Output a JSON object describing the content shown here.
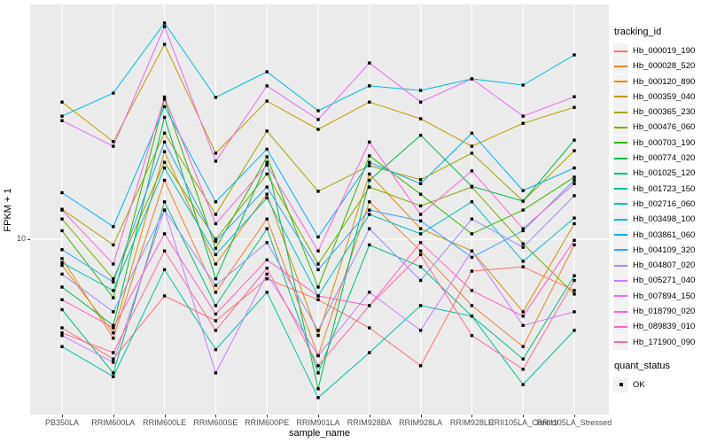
{
  "figure": {
    "y_axis_title": "FPKM + 1",
    "x_axis_title": "sample_name",
    "y_tick_labels": [
      "10"
    ]
  },
  "legend": {
    "tracking_title": "tracking_id",
    "quant_title": "quant_status",
    "quant_items": [
      {
        "label": "OK",
        "marker": "black-filled-square"
      }
    ]
  },
  "colors": {
    "panel_background": "#EBEBEB",
    "gridline": "#FFFFFF",
    "axis_text": "#4D4D4D",
    "tick_mark": "#333333",
    "point": "#000000",
    "legend_key_background": "#F2F2F2"
  },
  "chart_data": {
    "type": "line",
    "title": "",
    "xlabel": "sample_name",
    "ylabel": "FPKM + 1",
    "y_scale": "log10",
    "y_major_gridline_value": 10,
    "ylim": [
      2.1,
      79
    ],
    "grid": true,
    "legend_position": "right",
    "point_marker": "filled-black-square",
    "quant_status": "OK",
    "categories": [
      "PB350LA",
      "RRIM600LA",
      "RRIM600LE",
      "RRIM600SE",
      "RRIM600PE",
      "RRIM901LA",
      "RRIM928BA",
      "RRIM928LA",
      "RRIM928LE",
      "RRII105LA_Control",
      "RRII105LA_Stressed"
    ],
    "series": [
      {
        "name": "Hb_000019_190",
        "color": "#F8766D",
        "values": [
          4.5,
          3.4,
          6.0,
          4.8,
          7.0,
          5.8,
          4.5,
          3.2,
          7.5,
          7.8,
          6.3
        ]
      },
      {
        "name": "Hb_000028_520",
        "color": "#EA8331",
        "values": [
          8.4,
          4.1,
          17.0,
          6.2,
          12.0,
          3.5,
          14.0,
          9.0,
          5.5,
          3.8,
          9.5
        ]
      },
      {
        "name": "Hb_000120_890",
        "color": "#D89000",
        "values": [
          7.9,
          4.3,
          22.0,
          8.0,
          15.0,
          4.2,
          18.0,
          11.0,
          9.0,
          5.2,
          11.5
        ]
      },
      {
        "name": "Hb_000359_040",
        "color": "#C09B00",
        "values": [
          34.4,
          24.1,
          57.9,
          21.7,
          34.7,
          26.9,
          34.4,
          29.6,
          23.1,
          28.4,
          32.8
        ]
      },
      {
        "name": "Hb_000365_230",
        "color": "#A3A500",
        "values": [
          13.1,
          9.5,
          26.0,
          12.5,
          26.5,
          15.4,
          19.4,
          17.1,
          21.7,
          14.1,
          22.2
        ]
      },
      {
        "name": "Hb_000476_060",
        "color": "#7CAE00",
        "values": [
          12.0,
          7.0,
          20.0,
          10.0,
          18.0,
          8.0,
          16.0,
          13.5,
          16.0,
          9.6,
          6.1
        ]
      },
      {
        "name": "Hb_000703_190",
        "color": "#39B600",
        "values": [
          10.8,
          5.9,
          35.3,
          9.2,
          21.0,
          6.5,
          21.2,
          15.0,
          10.5,
          13.0,
          17.5
        ]
      },
      {
        "name": "Hb_000774_020",
        "color": "#00BB4E",
        "values": [
          6.5,
          4.6,
          30.0,
          7.0,
          20.0,
          2.6,
          17.0,
          25.5,
          16.1,
          14.1,
          24.4
        ]
      },
      {
        "name": "Hb_001025_120",
        "color": "#00BF7D",
        "values": [
          5.3,
          3.0,
          14.0,
          5.5,
          11.0,
          3.0,
          9.5,
          7.8,
          5.0,
          3.4,
          7.2
        ]
      },
      {
        "name": "Hb_001723_150",
        "color": "#00C1A3",
        "values": [
          3.8,
          2.9,
          7.6,
          3.7,
          6.2,
          2.4,
          3.6,
          5.5,
          5.0,
          2.7,
          4.4
        ]
      },
      {
        "name": "Hb_002716_060",
        "color": "#00BFC4",
        "values": [
          8.1,
          6.3,
          19.0,
          8.7,
          14.5,
          6.0,
          12.5,
          10.5,
          14.0,
          8.2,
          12.1
        ]
      },
      {
        "name": "Hb_003498_100",
        "color": "#00BAE0",
        "values": [
          30.3,
          37.3,
          70.1,
          35.9,
          45.2,
          31.8,
          39.8,
          38.2,
          42.4,
          40.1,
          52.6
        ]
      },
      {
        "name": "Hb_003861_060",
        "color": "#00B0F6",
        "values": [
          15.2,
          11.2,
          33.0,
          14.0,
          22.5,
          10.2,
          20.0,
          16.5,
          26.0,
          15.5,
          19.0
        ]
      },
      {
        "name": "Hb_004109_320",
        "color": "#35A2FF",
        "values": [
          9.1,
          6.8,
          24.0,
          9.8,
          16.0,
          7.6,
          13.0,
          11.8,
          8.5,
          10.8,
          17.0
        ]
      },
      {
        "name": "Hb_004807_020",
        "color": "#9590FF",
        "values": [
          7.3,
          5.2,
          13.0,
          6.6,
          9.7,
          4.4,
          11.0,
          6.9,
          12.0,
          9.3,
          14.8
        ]
      },
      {
        "name": "Hb_005271_040",
        "color": "#C77CFF",
        "values": [
          4.2,
          3.3,
          13.0,
          3.0,
          7.3,
          3.5,
          6.2,
          4.4,
          9.0,
          4.6,
          5.2
        ]
      },
      {
        "name": "Hb_007894_150",
        "color": "#E76BF3",
        "values": [
          29.1,
          23.1,
          67.9,
          20.2,
          39.8,
          29.4,
          48.9,
          34.4,
          42.4,
          30.3,
          36.1
        ]
      },
      {
        "name": "Hb_018790_020",
        "color": "#FA62DB",
        "values": [
          13.0,
          8.0,
          36.0,
          11.5,
          19.5,
          9.0,
          24.0,
          12.5,
          18.5,
          11.0,
          16.5
        ]
      },
      {
        "name": "Hb_089839_010",
        "color": "#FF62BC",
        "values": [
          5.8,
          4.5,
          10.5,
          5.1,
          8.3,
          6.0,
          5.5,
          9.7,
          6.3,
          5.0,
          9.9
        ]
      },
      {
        "name": "Hb_171900_090",
        "color": "#FF6A98",
        "values": [
          4.3,
          3.6,
          9.0,
          4.4,
          7.7,
          3.2,
          5.5,
          8.7,
          4.2,
          3.1,
          6.9
        ]
      }
    ]
  }
}
